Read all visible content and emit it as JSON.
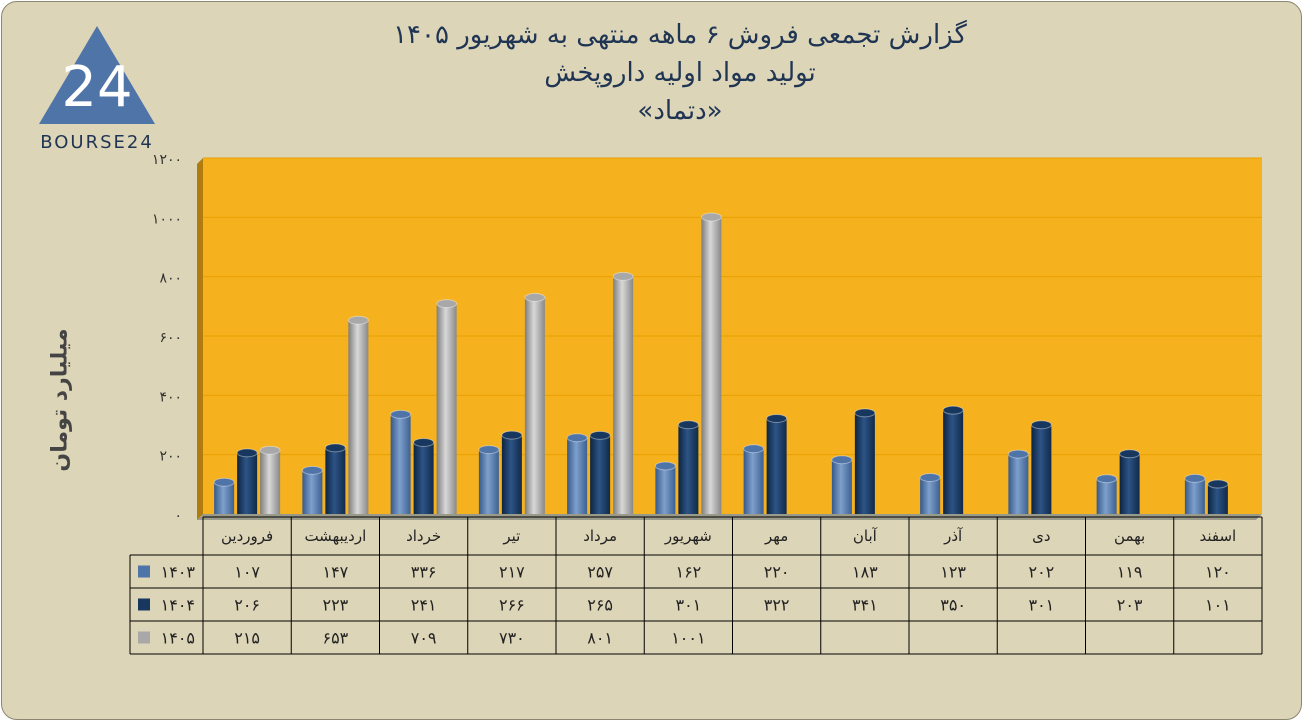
{
  "title": {
    "line1": "گزارش تجمعی فروش ۶ ماهه منتهی به شهریور ۱۴۰۵",
    "line2": "تولید مواد اولیه داروپخش",
    "line3": "«دتماد»"
  },
  "logo": {
    "text": "BOURSE24",
    "mark": "24"
  },
  "colors": {
    "plot_bg": "#f6b11e",
    "page_bg": "#ddd5b8",
    "s1403": "#4f74a8",
    "s1404": "#17375e",
    "s1405": "#a8a8a8"
  },
  "chart_data": {
    "type": "bar",
    "ylabel": "میلیارد تومان",
    "ylim": [
      0,
      1200
    ],
    "yticks": [
      "۰",
      "۲۰۰",
      "۴۰۰",
      "۶۰۰",
      "۸۰۰",
      "۱۰۰۰",
      "۱۲۰۰"
    ],
    "grid": true,
    "legend": "table-left",
    "categories": [
      "فروردین",
      "اردیبهشت",
      "خرداد",
      "تیر",
      "مرداد",
      "شهریور",
      "مهر",
      "آبان",
      "آذر",
      "دی",
      "بهمن",
      "اسفند"
    ],
    "series": [
      {
        "name": "۱۴۰۳",
        "values": [
          107,
          147,
          336,
          217,
          257,
          162,
          220,
          183,
          123,
          202,
          119,
          120
        ],
        "labels": [
          "۱۰۷",
          "۱۴۷",
          "۳۳۶",
          "۲۱۷",
          "۲۵۷",
          "۱۶۲",
          "۲۲۰",
          "۱۸۳",
          "۱۲۳",
          "۲۰۲",
          "۱۱۹",
          "۱۲۰"
        ]
      },
      {
        "name": "۱۴۰۴",
        "values": [
          206,
          223,
          241,
          266,
          265,
          301,
          322,
          341,
          350,
          301,
          203,
          101
        ],
        "labels": [
          "۲۰۶",
          "۲۲۳",
          "۲۴۱",
          "۲۶۶",
          "۲۶۵",
          "۳۰۱",
          "۳۲۲",
          "۳۴۱",
          "۳۵۰",
          "۳۰۱",
          "۲۰۳",
          "۱۰۱"
        ]
      },
      {
        "name": "۱۴۰۵",
        "values": [
          215,
          653,
          709,
          730,
          801,
          1001,
          null,
          null,
          null,
          null,
          null,
          null
        ],
        "labels": [
          "۲۱۵",
          "۶۵۳",
          "۷۰۹",
          "۷۳۰",
          "۸۰۱",
          "۱۰۰۱",
          "",
          "",
          "",
          "",
          "",
          ""
        ]
      }
    ]
  }
}
